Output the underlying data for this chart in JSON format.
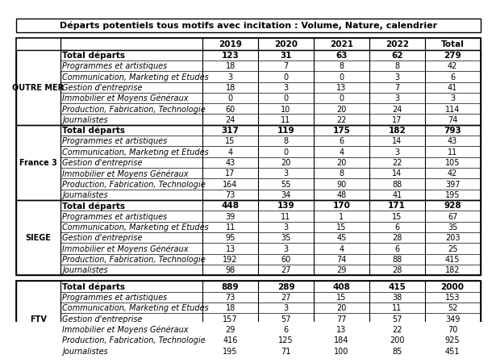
{
  "title": "Départs potentiels tous motifs avec incitation : Volume, Nature, calendrier",
  "columns": [
    "",
    "",
    "2019",
    "2020",
    "2021",
    "2022",
    "Total"
  ],
  "sections": [
    {
      "group": "OUTRE MER",
      "rows": [
        {
          "label": "Total départs",
          "bold": true,
          "values": [
            123,
            31,
            63,
            62,
            279
          ]
        },
        {
          "label": "Programmes et artistiques",
          "bold": false,
          "values": [
            18,
            7,
            8,
            8,
            42
          ]
        },
        {
          "label": "Communication, Marketing et Etudes",
          "bold": false,
          "values": [
            3,
            0,
            0,
            3,
            6
          ]
        },
        {
          "label": "Gestion d'entreprise",
          "bold": false,
          "values": [
            18,
            3,
            13,
            7,
            41
          ]
        },
        {
          "label": "Immobilier et Moyens Généraux",
          "bold": false,
          "values": [
            0,
            0,
            0,
            3,
            3
          ]
        },
        {
          "label": "Production, Fabrication, Technologie",
          "bold": false,
          "values": [
            60,
            10,
            20,
            24,
            114
          ]
        },
        {
          "label": "Journalistes",
          "bold": false,
          "values": [
            24,
            11,
            22,
            17,
            74
          ]
        }
      ]
    },
    {
      "group": "France 3",
      "rows": [
        {
          "label": "Total départs",
          "bold": true,
          "values": [
            317,
            119,
            175,
            182,
            793
          ]
        },
        {
          "label": "Programmes et artistiques",
          "bold": false,
          "values": [
            15,
            8,
            6,
            14,
            43
          ]
        },
        {
          "label": "Communication, Marketing et Etudes",
          "bold": false,
          "values": [
            4,
            0,
            4,
            3,
            11
          ]
        },
        {
          "label": "Gestion d'entreprise",
          "bold": false,
          "values": [
            43,
            20,
            20,
            22,
            105
          ]
        },
        {
          "label": "Immobilier et Moyens Généraux",
          "bold": false,
          "values": [
            17,
            3,
            8,
            14,
            42
          ]
        },
        {
          "label": "Production, Fabrication, Technologie",
          "bold": false,
          "values": [
            164,
            55,
            90,
            88,
            397
          ]
        },
        {
          "label": "Journalistes",
          "bold": false,
          "values": [
            73,
            34,
            48,
            41,
            195
          ]
        }
      ]
    },
    {
      "group": "SIEGE",
      "rows": [
        {
          "label": "Total départs",
          "bold": true,
          "values": [
            448,
            139,
            170,
            171,
            928
          ]
        },
        {
          "label": "Programmes et artistiques",
          "bold": false,
          "values": [
            39,
            11,
            1,
            15,
            67
          ]
        },
        {
          "label": "Communication, Marketing et Etudes",
          "bold": false,
          "values": [
            11,
            3,
            15,
            6,
            35
          ]
        },
        {
          "label": "Gestion d'entreprise",
          "bold": false,
          "values": [
            95,
            35,
            45,
            28,
            203
          ]
        },
        {
          "label": "Immobilier et Moyens Généraux",
          "bold": false,
          "values": [
            13,
            3,
            4,
            6,
            25
          ]
        },
        {
          "label": "Production, Fabrication, Technologie",
          "bold": false,
          "values": [
            192,
            60,
            74,
            88,
            415
          ]
        },
        {
          "label": "Journalistes",
          "bold": false,
          "values": [
            98,
            27,
            29,
            28,
            182
          ]
        }
      ]
    },
    {
      "group": "FTV",
      "rows": [
        {
          "label": "Total départs",
          "bold": true,
          "values": [
            889,
            289,
            408,
            415,
            2000
          ]
        },
        {
          "label": "Programmes et artistiques",
          "bold": false,
          "values": [
            73,
            27,
            15,
            38,
            153
          ]
        },
        {
          "label": "Communication, Marketing et Etudes",
          "bold": false,
          "values": [
            18,
            3,
            20,
            11,
            52
          ]
        },
        {
          "label": "Gestion d'entreprise",
          "bold": false,
          "values": [
            157,
            57,
            77,
            57,
            349
          ]
        },
        {
          "label": "Immobilier et Moyens Généraux",
          "bold": false,
          "values": [
            29,
            6,
            13,
            22,
            70
          ]
        },
        {
          "label": "Production, Fabrication, Technologie",
          "bold": false,
          "values": [
            416,
            125,
            184,
            200,
            925
          ]
        },
        {
          "label": "Journalistes",
          "bold": false,
          "values": [
            195,
            71,
            100,
            85,
            451
          ]
        }
      ]
    }
  ],
  "bg_color": "#ffffff",
  "header_bg": "#ffffff",
  "border_color": "#000000",
  "title_fontsize": 8,
  "header_fontsize": 7.5,
  "cell_fontsize": 7,
  "group_fontsize": 7,
  "total_row_color": "#000000",
  "normal_row_color": "#333333"
}
